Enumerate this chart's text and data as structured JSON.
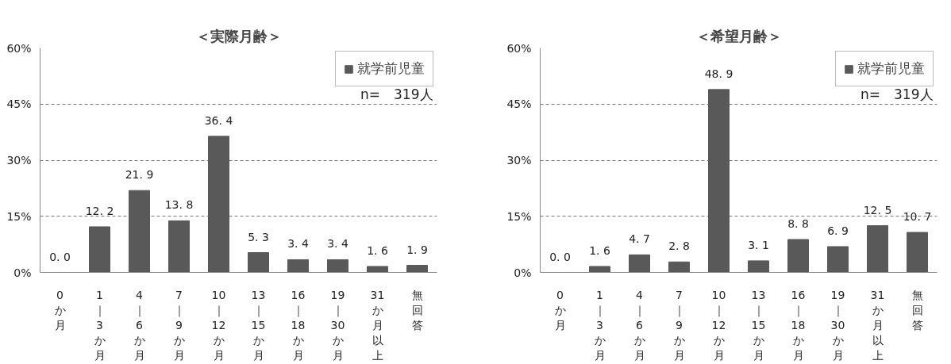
{
  "chart_data": [
    {
      "type": "bar",
      "title": "＜実際月齢＞",
      "categories": [
        "0か月",
        "1｜3か月",
        "4｜6か月",
        "7｜9か月",
        "10｜12か月",
        "13｜15か月",
        "16｜18か月",
        "19｜30か月",
        "31か月以上",
        "無回答"
      ],
      "series": [
        {
          "name": "就学前児童",
          "color": "#595959",
          "values": [
            0.0,
            12.2,
            21.9,
            13.8,
            36.4,
            5.3,
            3.4,
            3.4,
            1.6,
            1.9
          ]
        }
      ],
      "value_labels": [
        "0. 0",
        "12. 2",
        "21. 9",
        "13. 8",
        "36. 4",
        "5. 3",
        "3. 4",
        "3. 4",
        "1. 6",
        "1. 9"
      ],
      "ylim": [
        0,
        60
      ],
      "yticks": [
        {
          "value": 0,
          "label": "0%"
        },
        {
          "value": 15,
          "label": "15%"
        },
        {
          "value": 30,
          "label": "30%"
        },
        {
          "value": 45,
          "label": "45%"
        },
        {
          "value": 60,
          "label": "60%"
        }
      ],
      "grid": "y",
      "legend": "top right",
      "annotations": [
        "n=　319人"
      ]
    },
    {
      "type": "bar",
      "title": "＜希望月齢＞",
      "categories": [
        "0か月",
        "1｜3か月",
        "4｜6か月",
        "7｜9か月",
        "10｜12か月",
        "13｜15か月",
        "16｜18か月",
        "19｜30か月",
        "31か月以上",
        "無回答"
      ],
      "series": [
        {
          "name": "就学前児童",
          "color": "#595959",
          "values": [
            0.0,
            1.6,
            4.7,
            2.8,
            48.9,
            3.1,
            8.8,
            6.9,
            12.5,
            10.7
          ]
        }
      ],
      "value_labels": [
        "0. 0",
        "1. 6",
        "4. 7",
        "2. 8",
        "48. 9",
        "3. 1",
        "8. 8",
        "6. 9",
        "12. 5",
        "10. 7"
      ],
      "ylim": [
        0,
        60
      ],
      "yticks": [
        {
          "value": 0,
          "label": "0%"
        },
        {
          "value": 15,
          "label": "15%"
        },
        {
          "value": 30,
          "label": "30%"
        },
        {
          "value": 45,
          "label": "45%"
        },
        {
          "value": 60,
          "label": "60%"
        }
      ],
      "grid": "y",
      "legend": "top right",
      "annotations": [
        "n=　319人"
      ]
    }
  ]
}
